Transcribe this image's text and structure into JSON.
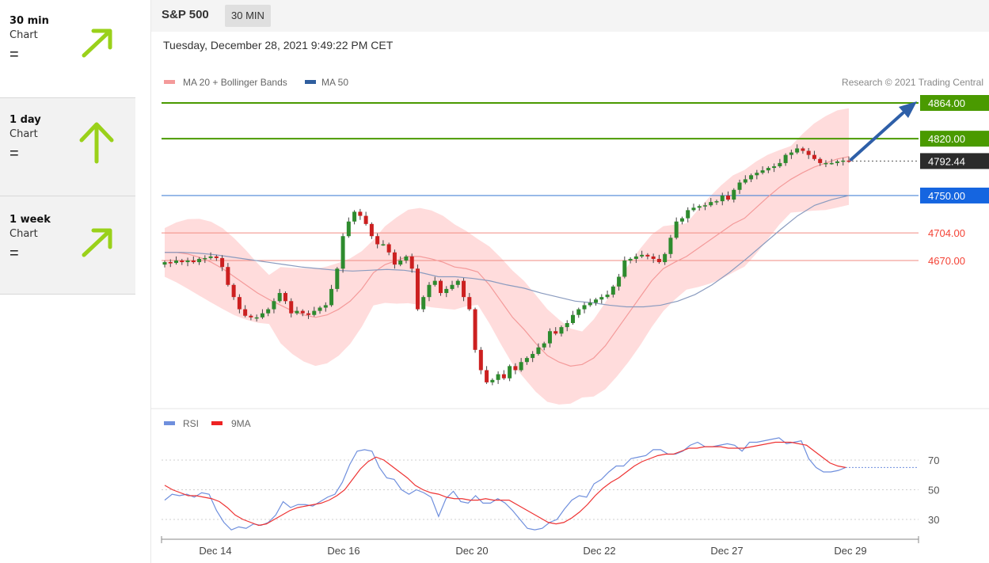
{
  "sidebar": {
    "items": [
      {
        "title": "30 min",
        "sub": "Chart",
        "eq": "=",
        "icon": "arrow-up-right-icon"
      },
      {
        "title": "1 day",
        "sub": "Chart",
        "eq": "=",
        "icon": "arrow-up-icon"
      },
      {
        "title": "1 week",
        "sub": "Chart",
        "eq": "=",
        "icon": "arrow-up-right-icon"
      }
    ]
  },
  "header": {
    "symbol": "S&P 500",
    "timeframe": "30 MIN"
  },
  "date": "Tuesday, December 28, 2021 9:49:22 PM CET",
  "colors": {
    "green_level": "#4a9a00",
    "red_level": "#f44336",
    "blue_ma": "#3a6ab0",
    "band": "#ffd6d6",
    "up_candle": "#2e8b2e",
    "down_candle": "#cc2020",
    "rsi": "#6f8fdd",
    "rsi_ma": "#ee3333"
  },
  "chart_data": [
    {
      "type": "candlestick",
      "legend": [
        "MA 20 + Bollinger Bands",
        "MA 50"
      ],
      "copyright": "Research © 2021 Trading Central",
      "ylim": [
        4580,
        4880
      ],
      "x_ticks": [
        "Dec 14",
        "Dec 16",
        "Dec 20",
        "Dec 22",
        "Dec 27",
        "Dec 29"
      ],
      "levels": [
        {
          "value": 4864,
          "label": "4864.00",
          "kind": "resistance"
        },
        {
          "value": 4820,
          "label": "4820.00",
          "kind": "resistance"
        },
        {
          "value": 4792.44,
          "label": "4792.44",
          "kind": "last"
        },
        {
          "value": 4750,
          "label": "4750.00",
          "kind": "support"
        },
        {
          "value": 4704,
          "label": "4704.00",
          "kind": "pivot"
        },
        {
          "value": 4670,
          "label": "4670.00",
          "kind": "pivot"
        }
      ],
      "closes": [
        4668,
        4667,
        4670,
        4668,
        4670,
        4668,
        4672,
        4673,
        4675,
        4673,
        4662,
        4640,
        4625,
        4610,
        4602,
        4600,
        4600,
        4605,
        4610,
        4620,
        4630,
        4620,
        4605,
        4608,
        4605,
        4603,
        4608,
        4612,
        4615,
        4635,
        4660,
        4700,
        4718,
        4730,
        4725,
        4715,
        4700,
        4690,
        4690,
        4680,
        4665,
        4670,
        4675,
        4660,
        4610,
        4625,
        4640,
        4645,
        4630,
        4635,
        4640,
        4645,
        4625,
        4610,
        4560,
        4535,
        4520,
        4523,
        4530,
        4525,
        4540,
        4535,
        4545,
        4550,
        4555,
        4563,
        4568,
        4583,
        4580,
        4588,
        4593,
        4603,
        4610,
        4615,
        4618,
        4622,
        4625,
        4628,
        4638,
        4650,
        4670,
        4672,
        4675,
        4677,
        4675,
        4672,
        4668,
        4678,
        4698,
        4718,
        4722,
        4732,
        4735,
        4737,
        4738,
        4742,
        4743,
        4750,
        4745,
        4757,
        4766,
        4770,
        4775,
        4778,
        4781,
        4784,
        4786,
        4790,
        4800,
        4803,
        4808,
        4805,
        4800,
        4795,
        4790,
        4790,
        4790,
        4792,
        4793,
        4792.44
      ],
      "ma20": [
        4680,
        4680,
        4678,
        4674,
        4668,
        4660,
        4650,
        4640,
        4630,
        4622,
        4615,
        4608,
        4603,
        4600,
        4603,
        4610,
        4620,
        4635,
        4655,
        4665,
        4670,
        4675,
        4675,
        4672,
        4668,
        4662,
        4660,
        4656,
        4640,
        4620,
        4600,
        4585,
        4568,
        4553,
        4545,
        4540,
        4542,
        4550,
        4565,
        4585,
        4605,
        4625,
        4645,
        4660,
        4668,
        4675,
        4685,
        4695,
        4705,
        4715,
        4722,
        4735,
        4748,
        4760,
        4770,
        4778,
        4785,
        4790,
        4795,
        4798
      ],
      "ma50": [
        4680,
        4680,
        4679,
        4677,
        4674,
        4671,
        4668,
        4665,
        4662,
        4660,
        4658,
        4657,
        4658,
        4659,
        4658,
        4655,
        4650,
        4650,
        4648,
        4645,
        4640,
        4636,
        4630,
        4625,
        4620,
        4618,
        4615,
        4613,
        4613,
        4615,
        4620,
        4628,
        4640,
        4655,
        4672,
        4690,
        4708,
        4725,
        4738,
        4745,
        4750
      ]
    },
    {
      "type": "line",
      "legend": [
        "RSI",
        "9MA"
      ],
      "yticks": [
        70,
        50,
        30
      ],
      "ylim": [
        15,
        90
      ],
      "series": [
        {
          "name": "RSI",
          "values": [
            43,
            47,
            46,
            47,
            45,
            48,
            47,
            36,
            28,
            23,
            25,
            24,
            27,
            26,
            28,
            33,
            42,
            38,
            40,
            40,
            39,
            42,
            45,
            47,
            55,
            67,
            76,
            77,
            76,
            65,
            58,
            57,
            50,
            47,
            50,
            48,
            45,
            32,
            44,
            49,
            42,
            41,
            46,
            41,
            41,
            44,
            41,
            36,
            30,
            24,
            23,
            24,
            28,
            30,
            37,
            43,
            46,
            45,
            54,
            57,
            62,
            66,
            66,
            71,
            72,
            73,
            77,
            77,
            74,
            74,
            76,
            80,
            82,
            79,
            79,
            80,
            81,
            80,
            76,
            82,
            82,
            83,
            84,
            85,
            81,
            82,
            83,
            71,
            65,
            62,
            62,
            63,
            65
          ]
        },
        {
          "name": "9MA",
          "values": [
            53,
            50,
            48,
            46,
            46,
            45,
            44,
            42,
            38,
            33,
            30,
            28,
            26,
            27,
            30,
            33,
            36,
            38,
            39,
            40,
            41,
            43,
            46,
            50,
            57,
            64,
            69,
            72,
            70,
            66,
            62,
            58,
            53,
            50,
            48,
            47,
            45,
            44,
            44,
            43,
            43,
            44,
            43,
            43,
            43,
            40,
            37,
            34,
            31,
            28,
            27,
            28,
            31,
            35,
            40,
            46,
            51,
            55,
            58,
            62,
            66,
            69,
            71,
            73,
            74,
            74,
            76,
            78,
            78,
            79,
            79,
            79,
            78,
            78,
            78,
            79,
            80,
            81,
            82,
            82,
            82,
            81,
            80,
            76,
            72,
            68,
            66,
            65
          ]
        }
      ]
    }
  ]
}
